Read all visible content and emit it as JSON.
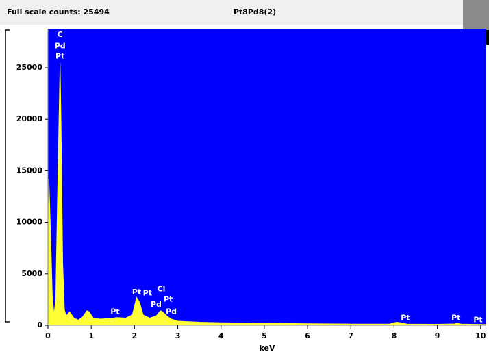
{
  "chart_data": {
    "type": "area",
    "title": "Pt8Pd8(2)",
    "header_left": "Full scale counts: 25494",
    "x_label": "keV",
    "x": [
      0.0,
      0.02,
      0.06,
      0.1,
      0.14,
      0.18,
      0.22,
      0.28,
      0.3,
      0.34,
      0.38,
      0.42,
      0.5,
      0.6,
      0.7,
      0.8,
      0.9,
      0.95,
      1.05,
      1.2,
      1.4,
      1.6,
      1.8,
      1.95,
      2.05,
      2.12,
      2.2,
      2.35,
      2.5,
      2.6,
      2.65,
      2.75,
      2.85,
      3.0,
      3.5,
      4.0,
      5.0,
      6.0,
      7.0,
      7.9,
      8.05,
      8.15,
      8.3,
      9.0,
      9.4,
      9.45,
      9.55,
      10.0,
      10.13
    ],
    "values": [
      0,
      14200,
      9000,
      3000,
      1000,
      2500,
      12000,
      25494,
      20000,
      6000,
      1500,
      900,
      1300,
      700,
      500,
      800,
      1400,
      1300,
      700,
      600,
      650,
      750,
      700,
      1000,
      2700,
      2200,
      1000,
      700,
      900,
      1400,
      1300,
      900,
      600,
      400,
      300,
      250,
      200,
      150,
      120,
      120,
      300,
      250,
      120,
      100,
      130,
      200,
      110,
      80,
      70
    ],
    "color": "#ffff33",
    "background": "#0000ff",
    "xlim": [
      0,
      10.13
    ],
    "ylim": [
      0,
      28790
    ],
    "xticks": [
      0,
      1,
      2,
      3,
      4,
      5,
      6,
      7,
      8,
      9,
      10
    ],
    "yticks": [
      0,
      5000,
      10000,
      15000,
      20000,
      25000
    ],
    "annotations": [
      {
        "text": "C",
        "x": 0.28,
        "y": 28200
      },
      {
        "text": "Pd",
        "x": 0.28,
        "y": 27100
      },
      {
        "text": "Pt",
        "x": 0.28,
        "y": 26100
      },
      {
        "text": "Pt",
        "x": 1.55,
        "y": 1300
      },
      {
        "text": "Pt",
        "x": 2.05,
        "y": 3200
      },
      {
        "text": "Pt",
        "x": 2.3,
        "y": 3100
      },
      {
        "text": "Cl",
        "x": 2.62,
        "y": 3500
      },
      {
        "text": "Pd",
        "x": 2.5,
        "y": 2000
      },
      {
        "text": "Pt",
        "x": 2.78,
        "y": 2500
      },
      {
        "text": "Pd",
        "x": 2.85,
        "y": 1300
      },
      {
        "text": "Pt",
        "x": 8.26,
        "y": 700
      },
      {
        "text": "Pt",
        "x": 9.43,
        "y": 700
      },
      {
        "text": "Pt",
        "x": 9.94,
        "y": 500
      }
    ]
  }
}
